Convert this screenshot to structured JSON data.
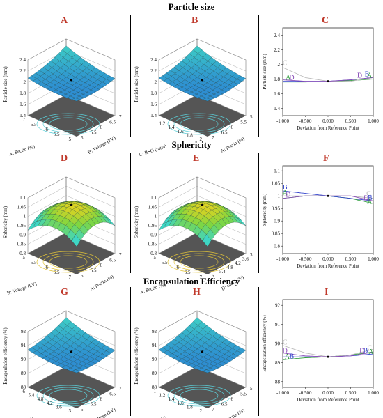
{
  "titles": {
    "particle_size": "Particle size",
    "sphericity": "Sphericity",
    "encapsulation": "Encapsulation Efficiency"
  },
  "panel_letters": [
    "A",
    "B",
    "C",
    "D",
    "E",
    "F",
    "G",
    "H",
    "I"
  ],
  "colors": {
    "panel_letter": "#c0392b",
    "floor": "#555555",
    "surface_low": "#2a7fd4",
    "surface_mid": "#3fd6c4",
    "surface_high": "#f2d21b",
    "trace_A": "#2e9e3c",
    "trace_B": "#3344cc",
    "trace_C": "#bbbbbb",
    "trace_D": "#8a4fb8"
  },
  "surfaces": [
    {
      "id": "A",
      "zticks": [
        "2.4",
        "2.2",
        "2",
        "1.8",
        "1.6",
        "1.4"
      ],
      "zlabel": "Particle size (mm)",
      "leftTicks": [
        "7",
        "6.5",
        "6",
        "5.5",
        "5"
      ],
      "leftLabel": "A: Pectin (%)",
      "rightTicks": [
        "5",
        "5.5",
        "6",
        "6.5",
        "7"
      ],
      "rightLabel": "B: Voltage (kV)",
      "scheme": "blue"
    },
    {
      "id": "B",
      "zticks": [
        "2.4",
        "2.2",
        "2",
        "1.8",
        "1.6",
        "1.4"
      ],
      "zlabel": "Particle size (mm)",
      "leftTicks": [
        "1",
        "1.2",
        "1.4",
        "1.6",
        "1.8",
        "2"
      ],
      "leftLabel": "C: BSO (ratio)",
      "rightTicks": [
        "7",
        "6.5",
        "6",
        "5.5",
        "5"
      ],
      "rightLabel": "A: Pectin (%)",
      "scheme": "blue"
    },
    {
      "id": "D",
      "zticks": [
        "1.1",
        "1.05",
        "1",
        "0.95",
        "0.9",
        "0.85",
        "0.8"
      ],
      "zlabel": "Sphericity (mm)",
      "leftTicks": [
        "5",
        "5.5",
        "6",
        "6.5",
        "7"
      ],
      "leftLabel": "B: Voltage (kV)",
      "rightTicks": [
        "5",
        "5.5",
        "6",
        "6.5",
        "7"
      ],
      "rightLabel": "A: Pectin (%)",
      "scheme": "yellow"
    },
    {
      "id": "E",
      "zticks": [
        "1.1",
        "1.05",
        "1",
        "0.95",
        "0.9",
        "0.85",
        "0.8"
      ],
      "zlabel": "Sphericity (mm)",
      "leftTicks": [
        "5",
        "5.5",
        "6",
        "6.5",
        "7"
      ],
      "leftLabel": "A: Pectin (%)",
      "rightTicks": [
        "6",
        "5.4",
        "4.8",
        "4.2",
        "3.6",
        "3"
      ],
      "rightLabel": "D: cacl2 (%)",
      "scheme": "yellow"
    },
    {
      "id": "G",
      "zticks": [
        "92",
        "91",
        "90",
        "89",
        "88"
      ],
      "zlabel": "Encapsulation efficiency (%)",
      "leftTicks": [
        "6",
        "5.4",
        "4.8",
        "4.2",
        "3.6",
        "3"
      ],
      "leftLabel": "D: cacl2 (%)",
      "rightTicks": [
        "5",
        "5.5",
        "6",
        "6.5",
        "7"
      ],
      "rightLabel": "B: Voltage (kV)",
      "scheme": "blue"
    },
    {
      "id": "H",
      "zticks": [
        "92",
        "91",
        "90",
        "89",
        "88"
      ],
      "zlabel": "Encapsulation efficiency (%)",
      "leftTicks": [
        "1",
        "1.2",
        "1.4",
        "1.6",
        "1.8",
        "2"
      ],
      "leftLabel": "C: BSO (ratio)",
      "rightTicks": [
        "7",
        "6.5",
        "6",
        "5.5",
        "5"
      ],
      "rightLabel": "A: Pectin (%)",
      "scheme": "blue"
    }
  ],
  "chart_data": [
    {
      "id": "C",
      "type": "line",
      "xlabel": "Deviation from Reference Point",
      "ylabel": "Particle size (mm)",
      "xlim": [
        -1,
        1
      ],
      "ylim": [
        1.3,
        2.5
      ],
      "xticks": [
        "-1.000",
        "-0.500",
        "0.000",
        "0.500",
        "1.000"
      ],
      "yticks": [
        "1.4",
        "1.6",
        "1.8",
        "2",
        "2.2",
        "2.4"
      ],
      "yvals": [
        1.4,
        1.6,
        1.8,
        2,
        2.2,
        2.4
      ],
      "x": [
        -1,
        -0.5,
        0,
        0.5,
        1
      ],
      "series": [
        {
          "name": "A",
          "values": [
            1.76,
            1.76,
            1.77,
            1.78,
            1.8
          ]
        },
        {
          "name": "B",
          "values": [
            1.77,
            1.77,
            1.77,
            1.79,
            1.82
          ]
        },
        {
          "name": "C",
          "values": [
            1.96,
            1.82,
            1.77,
            1.77,
            1.82
          ]
        },
        {
          "name": "D",
          "values": [
            1.79,
            1.77,
            1.77,
            1.79,
            1.82
          ]
        }
      ],
      "labels": [
        {
          "text": "C",
          "x": -0.95,
          "y": 1.99,
          "s": "C"
        },
        {
          "text": "A",
          "x": -0.88,
          "y": 1.79,
          "s": "A"
        },
        {
          "text": "D",
          "x": -0.8,
          "y": 1.79,
          "s": "D"
        },
        {
          "text": "D",
          "x": 0.7,
          "y": 1.82,
          "s": "D"
        },
        {
          "text": "B",
          "x": 0.86,
          "y": 1.84,
          "s": "B"
        },
        {
          "text": "A",
          "x": 0.92,
          "y": 1.82,
          "s": "A"
        }
      ]
    },
    {
      "id": "F",
      "type": "line",
      "xlabel": "Deviation from Reference Point",
      "ylabel": "Sphericity (mm)",
      "xlim": [
        -1,
        1
      ],
      "ylim": [
        0.77,
        1.12
      ],
      "xticks": [
        "-1.000",
        "-0.500",
        "0.000",
        "0.500",
        "1.000"
      ],
      "yticks": [
        "0.8",
        "0.85",
        "0.9",
        "0.95",
        "1",
        "1.05",
        "1.1"
      ],
      "yvals": [
        0.8,
        0.85,
        0.9,
        0.95,
        1,
        1.05,
        1.1
      ],
      "x": [
        -1,
        -0.5,
        0,
        0.5,
        1
      ],
      "series": [
        {
          "name": "A",
          "values": [
            0.99,
            1.0,
            1.0,
            0.99,
            0.97
          ]
        },
        {
          "name": "B",
          "values": [
            1.02,
            1.01,
            1.0,
            0.99,
            0.98
          ]
        },
        {
          "name": "C",
          "values": [
            1.0,
            1.0,
            1.0,
            1.0,
            0.99
          ]
        },
        {
          "name": "D",
          "values": [
            0.99,
            1.0,
            1.0,
            1.0,
            0.98
          ]
        }
      ],
      "labels": [
        {
          "text": "B",
          "x": -0.95,
          "y": 1.025,
          "s": "B"
        },
        {
          "text": "A",
          "x": -0.95,
          "y": 1.003,
          "s": "A"
        },
        {
          "text": "D",
          "x": -0.88,
          "y": 0.997,
          "s": "D"
        },
        {
          "text": "C",
          "x": 0.9,
          "y": 1.0,
          "s": "C"
        },
        {
          "text": "D",
          "x": 0.84,
          "y": 0.982,
          "s": "D"
        },
        {
          "text": "B",
          "x": 0.93,
          "y": 0.984,
          "s": "B"
        },
        {
          "text": "A",
          "x": 0.92,
          "y": 0.968,
          "s": "A"
        }
      ]
    },
    {
      "id": "I",
      "type": "line",
      "xlabel": "Deviation from Reference Point",
      "ylabel": "Encapsulation efficiency (%)",
      "xlim": [
        -1,
        1
      ],
      "ylim": [
        87.7,
        92.3
      ],
      "xticks": [
        "-1.000",
        "-0.500",
        "0.000",
        "0.500",
        "1.000"
      ],
      "yticks": [
        "88",
        "89",
        "90",
        "91",
        "92"
      ],
      "yvals": [
        88,
        89,
        90,
        91,
        92
      ],
      "x": [
        -1,
        -0.5,
        0,
        0.5,
        1
      ],
      "series": [
        {
          "name": "A",
          "values": [
            89.15,
            89.25,
            89.3,
            89.4,
            89.55
          ]
        },
        {
          "name": "B",
          "values": [
            89.3,
            89.3,
            89.3,
            89.35,
            89.45
          ]
        },
        {
          "name": "C",
          "values": [
            89.9,
            89.5,
            89.3,
            89.4,
            89.7
          ]
        },
        {
          "name": "D",
          "values": [
            89.5,
            89.35,
            89.3,
            89.35,
            89.55
          ]
        }
      ],
      "labels": [
        {
          "text": "C",
          "x": -0.95,
          "y": 89.95,
          "s": "C"
        },
        {
          "text": "D",
          "x": -0.95,
          "y": 89.5,
          "s": "D"
        },
        {
          "text": "A",
          "x": -0.9,
          "y": 89.2,
          "s": "A"
        },
        {
          "text": "B",
          "x": -0.8,
          "y": 89.22,
          "s": "B"
        },
        {
          "text": "D",
          "x": 0.75,
          "y": 89.5,
          "s": "D"
        },
        {
          "text": "B",
          "x": 0.83,
          "y": 89.5,
          "s": "B"
        },
        {
          "text": "C",
          "x": 0.92,
          "y": 89.65,
          "s": "C"
        },
        {
          "text": "A",
          "x": 0.95,
          "y": 89.45,
          "s": "A"
        }
      ]
    }
  ]
}
